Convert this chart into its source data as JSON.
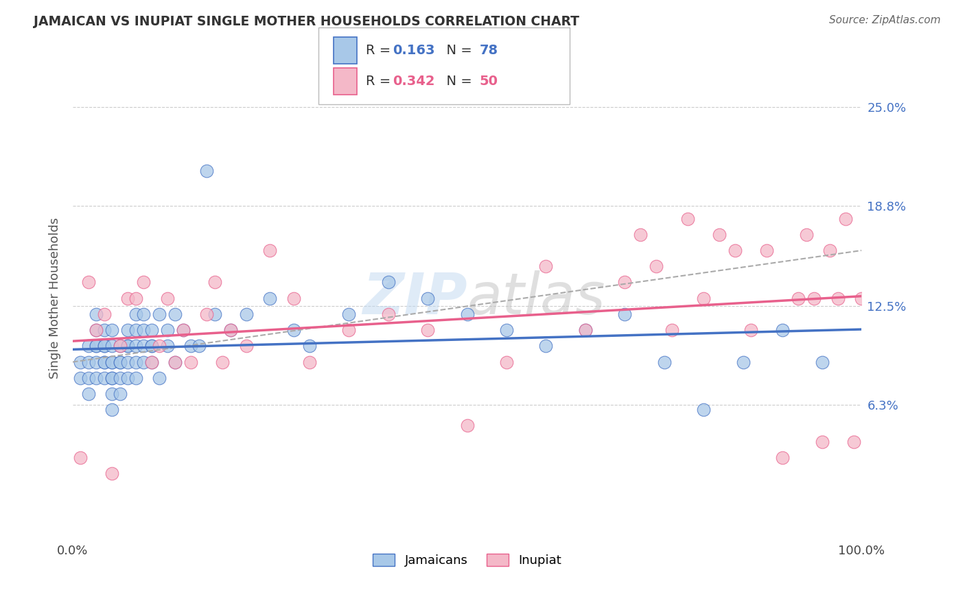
{
  "title": "JAMAICAN VS INUPIAT SINGLE MOTHER HOUSEHOLDS CORRELATION CHART",
  "source": "Source: ZipAtlas.com",
  "ylabel": "Single Mother Households",
  "xlim": [
    0,
    100
  ],
  "ylim": [
    -2,
    28
  ],
  "ytick_vals": [
    6.3,
    12.5,
    18.8,
    25.0
  ],
  "ytick_labels": [
    "6.3%",
    "12.5%",
    "18.8%",
    "25.0%"
  ],
  "xtick_vals": [
    0,
    100
  ],
  "xtick_labels": [
    "0.0%",
    "100.0%"
  ],
  "legend_labels": [
    "Jamaicans",
    "Inupiat"
  ],
  "r_jamaican": "0.163",
  "n_jamaican": "78",
  "r_inupiat": "0.342",
  "n_inupiat": "50",
  "color_jamaican_fill": "#A8C8E8",
  "color_jamaican_edge": "#4472C4",
  "color_inupiat_fill": "#F4B8C8",
  "color_inupiat_edge": "#E8608C",
  "color_line_jamaican": "#4472C4",
  "color_line_inupiat": "#E8608C",
  "color_trend_dashed": "#AAAAAA",
  "watermark": "ZIPAtlas",
  "background_color": "#FFFFFF",
  "grid_color": "#CCCCCC",
  "jamaican_x": [
    1,
    1,
    2,
    2,
    2,
    2,
    3,
    3,
    3,
    3,
    3,
    3,
    4,
    4,
    4,
    4,
    4,
    4,
    5,
    5,
    5,
    5,
    5,
    5,
    5,
    5,
    6,
    6,
    6,
    6,
    6,
    7,
    7,
    7,
    7,
    7,
    8,
    8,
    8,
    8,
    8,
    9,
    9,
    9,
    9,
    10,
    10,
    10,
    10,
    11,
    11,
    12,
    12,
    13,
    13,
    14,
    15,
    16,
    17,
    18,
    20,
    22,
    25,
    28,
    30,
    35,
    40,
    45,
    50,
    55,
    60,
    65,
    70,
    75,
    80,
    85,
    90,
    95
  ],
  "jamaican_y": [
    9,
    8,
    8,
    10,
    9,
    7,
    10,
    11,
    9,
    8,
    10,
    12,
    9,
    10,
    11,
    8,
    9,
    10,
    8,
    9,
    7,
    10,
    11,
    6,
    9,
    8,
    9,
    10,
    8,
    7,
    9,
    10,
    11,
    9,
    8,
    10,
    12,
    8,
    9,
    10,
    11,
    11,
    12,
    9,
    10,
    10,
    9,
    11,
    10,
    12,
    8,
    11,
    10,
    12,
    9,
    11,
    10,
    10,
    21,
    12,
    11,
    12,
    13,
    11,
    10,
    12,
    14,
    13,
    12,
    11,
    10,
    11,
    12,
    9,
    6,
    9,
    11,
    9
  ],
  "inupiat_x": [
    1,
    2,
    3,
    4,
    5,
    6,
    7,
    8,
    9,
    10,
    11,
    12,
    13,
    14,
    15,
    17,
    18,
    19,
    20,
    22,
    25,
    28,
    30,
    35,
    40,
    45,
    50,
    55,
    60,
    65,
    70,
    72,
    74,
    76,
    78,
    80,
    82,
    84,
    86,
    88,
    90,
    92,
    93,
    94,
    95,
    96,
    97,
    98,
    99,
    100
  ],
  "inupiat_y": [
    3,
    14,
    11,
    12,
    2,
    10,
    13,
    13,
    14,
    9,
    10,
    13,
    9,
    11,
    9,
    12,
    14,
    9,
    11,
    10,
    16,
    13,
    9,
    11,
    12,
    11,
    5,
    9,
    15,
    11,
    14,
    17,
    15,
    11,
    18,
    13,
    17,
    16,
    11,
    16,
    3,
    13,
    17,
    13,
    4,
    16,
    13,
    18,
    4,
    13
  ]
}
